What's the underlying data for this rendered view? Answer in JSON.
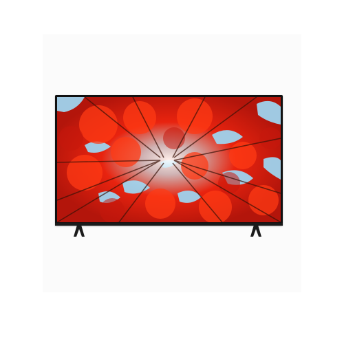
{
  "product": {
    "icon": "television-icon",
    "screen_image": "autumn-forest-canopy-image",
    "colors": {
      "bezel": "#111111",
      "foliage_red": "#e02010",
      "sky_blue": "#9fd3ee",
      "background": "#ffffff"
    }
  }
}
